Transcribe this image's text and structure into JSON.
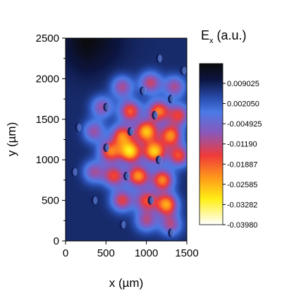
{
  "chart_data": {
    "type": "heatmap",
    "title": "",
    "xlabel": "x (µm)",
    "ylabel": "y (µm)",
    "xlim": [
      0,
      1500
    ],
    "ylim": [
      0,
      2500
    ],
    "x_ticks": [
      0,
      500,
      1000,
      1500
    ],
    "y_ticks": [
      0,
      500,
      1000,
      1500,
      2000,
      2500
    ],
    "colorbar": {
      "title_main": "E",
      "title_sub": "x",
      "title_suffix": " (a.u.)",
      "ticks": [
        "0.009025",
        "0.002050",
        "-0.004925",
        "-0.01190",
        "-0.01887",
        "-0.02585",
        "-0.03282",
        "-0.03980"
      ],
      "range": [
        -0.0398,
        0.009025
      ]
    },
    "field": {
      "background_value": 0.002,
      "corner_peak": {
        "x": 200,
        "y": 2500,
        "value": 0.009
      },
      "hot_spots": [
        {
          "x": 700,
          "y": 1900,
          "value": -0.014
        },
        {
          "x": 1050,
          "y": 1950,
          "value": -0.016
        },
        {
          "x": 1350,
          "y": 1900,
          "value": -0.014
        },
        {
          "x": 450,
          "y": 1650,
          "value": -0.013
        },
        {
          "x": 800,
          "y": 1600,
          "value": -0.021
        },
        {
          "x": 1150,
          "y": 1600,
          "value": -0.023
        },
        {
          "x": 1400,
          "y": 1550,
          "value": -0.018
        },
        {
          "x": 350,
          "y": 1350,
          "value": -0.013
        },
        {
          "x": 700,
          "y": 1300,
          "value": -0.022
        },
        {
          "x": 1000,
          "y": 1350,
          "value": -0.028
        },
        {
          "x": 1300,
          "y": 1300,
          "value": -0.024
        },
        {
          "x": 550,
          "y": 1100,
          "value": -0.022
        },
        {
          "x": 800,
          "y": 1100,
          "value": -0.03
        },
        {
          "x": 1100,
          "y": 1100,
          "value": -0.029
        },
        {
          "x": 1400,
          "y": 1050,
          "value": -0.02
        },
        {
          "x": 350,
          "y": 850,
          "value": -0.013
        },
        {
          "x": 600,
          "y": 800,
          "value": -0.019
        },
        {
          "x": 900,
          "y": 800,
          "value": -0.025
        },
        {
          "x": 1200,
          "y": 750,
          "value": -0.024
        },
        {
          "x": 700,
          "y": 500,
          "value": -0.018
        },
        {
          "x": 1000,
          "y": 500,
          "value": -0.019
        },
        {
          "x": 1250,
          "y": 450,
          "value": -0.026
        },
        {
          "x": 1000,
          "y": 250,
          "value": -0.014
        },
        {
          "x": 1300,
          "y": 200,
          "value": -0.014
        }
      ],
      "dark_dots": [
        {
          "x": 1150,
          "y": 2250
        },
        {
          "x": 1450,
          "y": 2100
        },
        {
          "x": 950,
          "y": 1850
        },
        {
          "x": 1300,
          "y": 1750
        },
        {
          "x": 500,
          "y": 1650
        },
        {
          "x": 1100,
          "y": 1550
        },
        {
          "x": 150,
          "y": 1400
        },
        {
          "x": 800,
          "y": 1350
        },
        {
          "x": 500,
          "y": 1150
        },
        {
          "x": 1150,
          "y": 1000
        },
        {
          "x": 100,
          "y": 850
        },
        {
          "x": 750,
          "y": 800
        },
        {
          "x": 350,
          "y": 500
        },
        {
          "x": 1050,
          "y": 500
        },
        {
          "x": 700,
          "y": 200
        },
        {
          "x": 1300,
          "y": 100
        }
      ]
    }
  }
}
